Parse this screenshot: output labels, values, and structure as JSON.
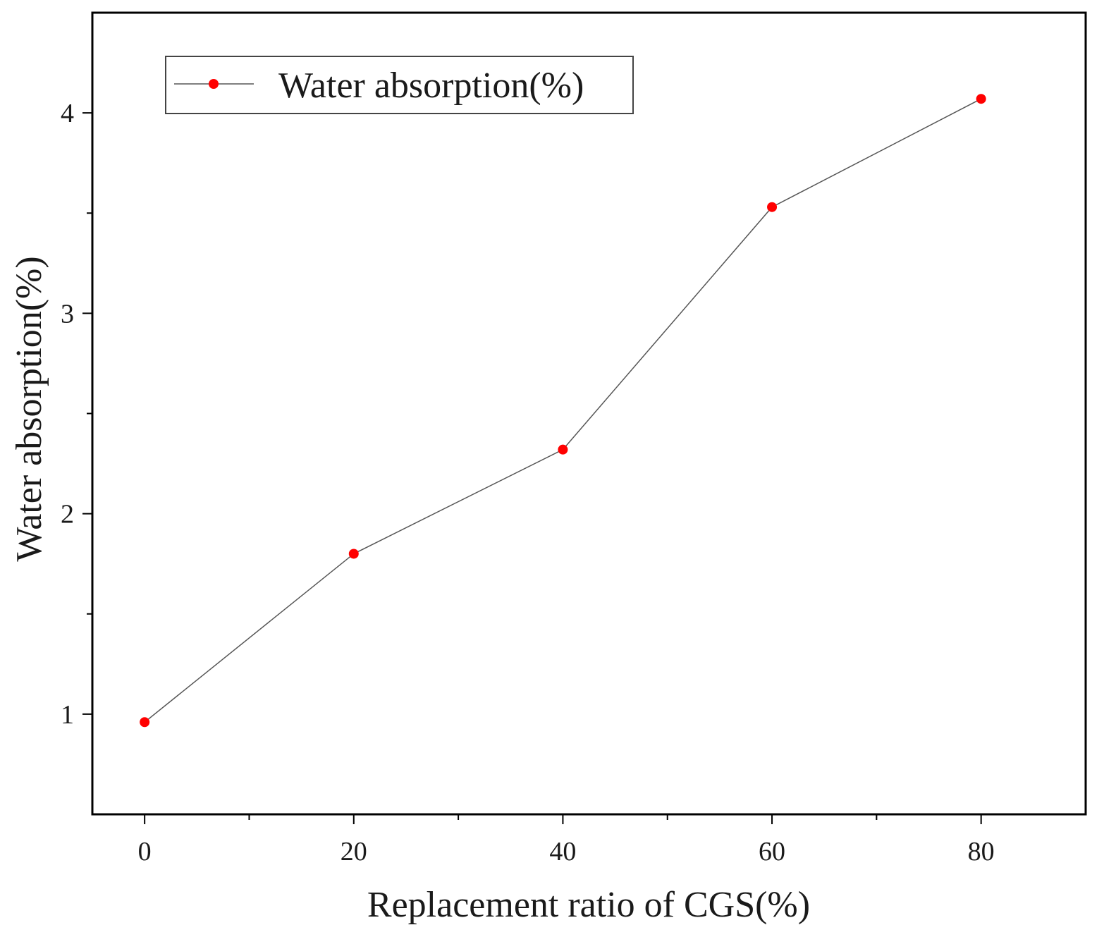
{
  "chart_data": {
    "type": "line",
    "title": "",
    "xlabel": "Replacement ratio of CGS(%)",
    "ylabel": "Water absorption(%)",
    "x": [
      0,
      20,
      40,
      60,
      80
    ],
    "x_ticks": [
      0,
      20,
      40,
      60,
      80
    ],
    "y_ticks": [
      1,
      2,
      3,
      4
    ],
    "xlim": [
      -5,
      90
    ],
    "ylim": [
      0.5,
      4.5
    ],
    "grid": false,
    "legend_position": "top-left",
    "series": [
      {
        "name": "Water absorption(%)",
        "values": [
          0.96,
          1.8,
          2.32,
          3.53,
          4.07
        ],
        "line_color": "#555555",
        "marker_color": "#ff0000"
      }
    ]
  }
}
